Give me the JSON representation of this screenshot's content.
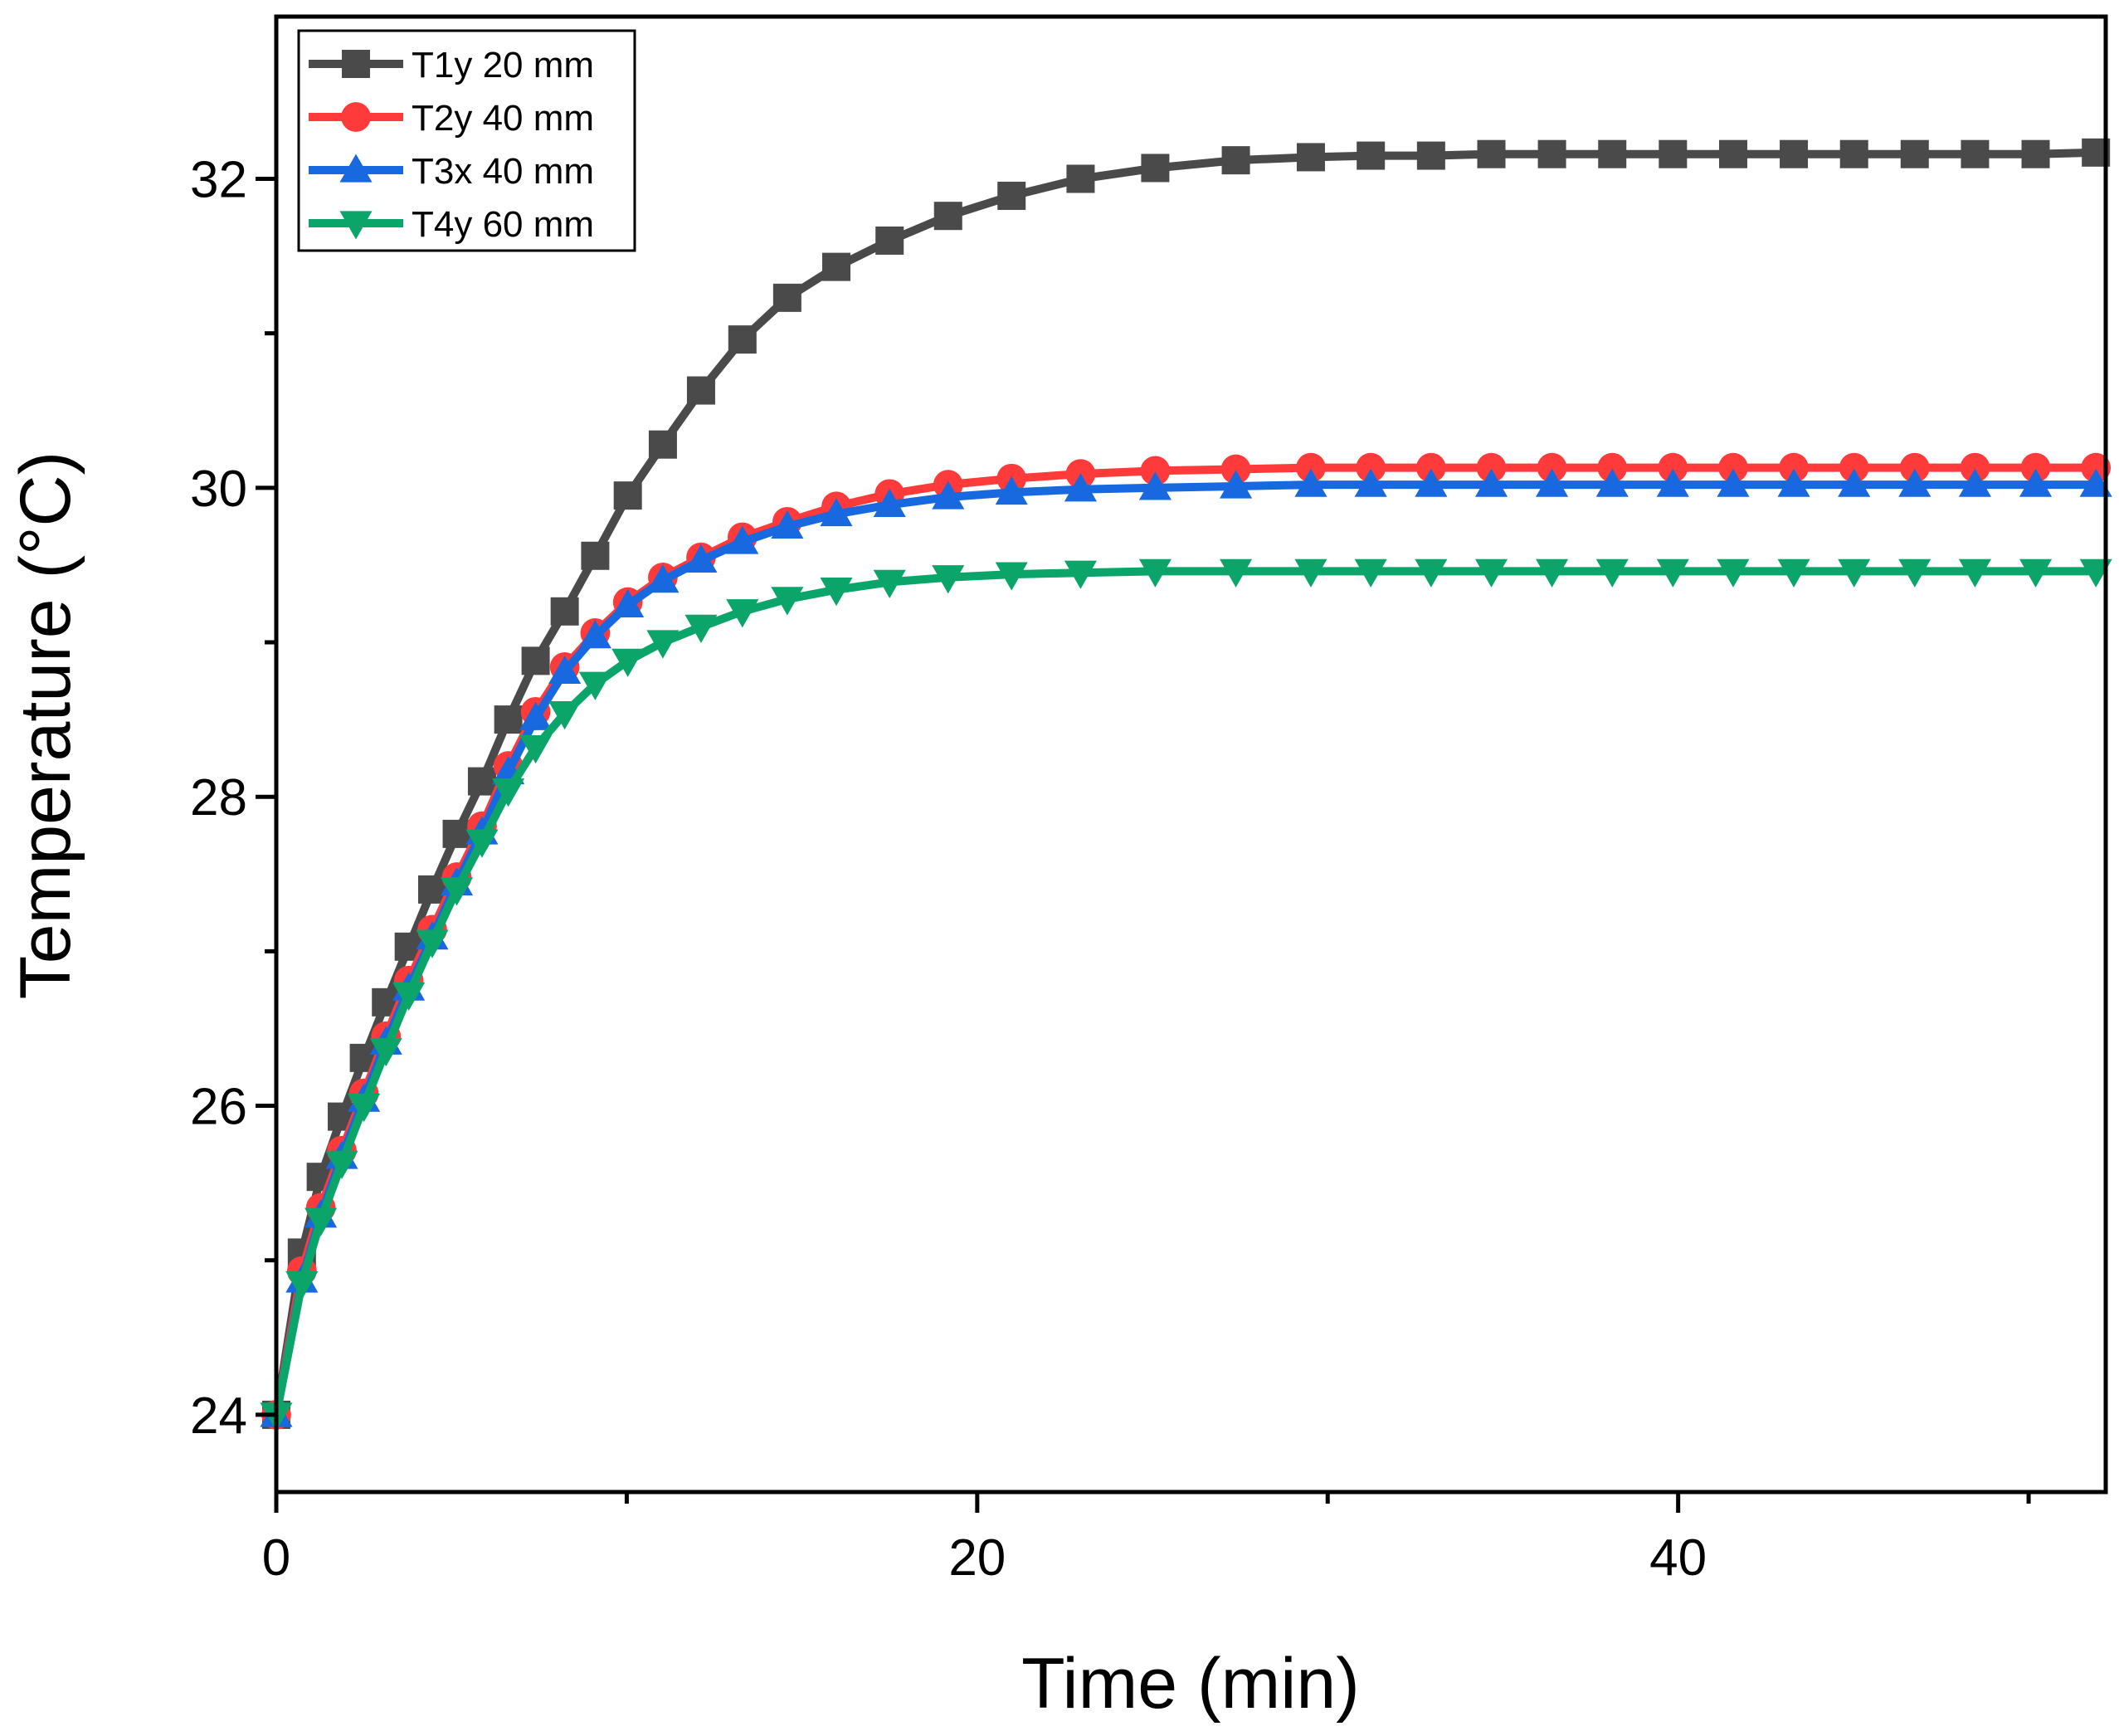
{
  "chart_data": {
    "type": "line",
    "title": "",
    "xlabel": "Time (min)",
    "ylabel": "Temperature (°C)",
    "xlim": [
      0,
      52.2
    ],
    "ylim": [
      23.5,
      33.05
    ],
    "xticks": [
      0,
      20,
      40
    ],
    "yticks": [
      24,
      26,
      28,
      30,
      32
    ],
    "legend_position": "top-left",
    "grid": false,
    "series": [
      {
        "name": "T1y 20 mm",
        "color": "#4a4a4a",
        "marker": "square",
        "x": [
          0,
          0.73,
          1.27,
          1.87,
          2.5,
          3.13,
          3.78,
          4.45,
          5.15,
          5.87,
          6.62,
          7.4,
          8.23,
          9.1,
          10.03,
          11.03,
          12.12,
          13.3,
          14.58,
          15.98,
          17.5,
          19.17,
          20.98,
          22.95,
          25.08,
          27.38,
          29.52,
          31.23,
          32.95,
          34.67,
          36.4,
          38.12,
          39.85,
          41.57,
          43.3,
          45.02,
          46.75,
          48.47,
          50.2,
          51.92
        ],
        "values": [
          24.0,
          25.05,
          25.54,
          25.93,
          26.31,
          26.67,
          27.03,
          27.4,
          27.76,
          28.1,
          28.5,
          28.88,
          29.2,
          29.56,
          29.95,
          30.28,
          30.63,
          30.96,
          31.23,
          31.43,
          31.6,
          31.76,
          31.89,
          32.0,
          32.07,
          32.12,
          32.14,
          32.15,
          32.15,
          32.16,
          32.16,
          32.16,
          32.16,
          32.16,
          32.16,
          32.16,
          32.16,
          32.16,
          32.16,
          32.17
        ]
      },
      {
        "name": "T2y 40 mm",
        "color": "#ff3a3a",
        "marker": "circle",
        "x": [
          0,
          0.73,
          1.27,
          1.87,
          2.5,
          3.13,
          3.78,
          4.45,
          5.15,
          5.87,
          6.62,
          7.4,
          8.23,
          9.1,
          10.03,
          11.03,
          12.12,
          13.3,
          14.58,
          15.98,
          17.5,
          19.17,
          20.98,
          22.95,
          25.08,
          27.38,
          29.52,
          31.23,
          32.95,
          34.67,
          36.4,
          38.12,
          39.85,
          41.57,
          43.3,
          45.02,
          46.75,
          48.47,
          50.2,
          51.92
        ],
        "values": [
          24.0,
          24.93,
          25.34,
          25.71,
          26.08,
          26.45,
          26.81,
          27.14,
          27.48,
          27.81,
          28.2,
          28.55,
          28.84,
          29.06,
          29.26,
          29.42,
          29.55,
          29.68,
          29.78,
          29.88,
          29.96,
          30.02,
          30.06,
          30.09,
          30.11,
          30.12,
          30.13,
          30.13,
          30.13,
          30.13,
          30.13,
          30.13,
          30.13,
          30.13,
          30.13,
          30.13,
          30.13,
          30.13,
          30.13,
          30.13
        ]
      },
      {
        "name": "T3x 40 mm",
        "color": "#1868e0",
        "marker": "triangle-up",
        "x": [
          0,
          0.73,
          1.27,
          1.87,
          2.5,
          3.13,
          3.78,
          4.45,
          5.15,
          5.87,
          6.62,
          7.4,
          8.23,
          9.1,
          10.03,
          11.03,
          12.12,
          13.3,
          14.58,
          15.98,
          17.5,
          19.17,
          20.98,
          22.95,
          25.08,
          27.38,
          29.52,
          31.23,
          32.95,
          34.67,
          36.4,
          38.12,
          39.85,
          41.57,
          43.3,
          45.02,
          46.75,
          48.47,
          50.2,
          51.92
        ],
        "values": [
          24.0,
          24.87,
          25.29,
          25.67,
          26.04,
          26.41,
          26.76,
          27.09,
          27.44,
          27.77,
          28.16,
          28.51,
          28.81,
          29.04,
          29.24,
          29.4,
          29.53,
          29.65,
          29.75,
          29.83,
          29.89,
          29.94,
          29.97,
          29.99,
          30.0,
          30.01,
          30.02,
          30.02,
          30.02,
          30.02,
          30.02,
          30.02,
          30.02,
          30.02,
          30.02,
          30.02,
          30.02,
          30.02,
          30.02,
          30.02
        ]
      },
      {
        "name": "T4y 60 mm",
        "color": "#0ba56a",
        "marker": "triangle-down",
        "x": [
          0,
          0.73,
          1.27,
          1.87,
          2.5,
          3.13,
          3.78,
          4.45,
          5.15,
          5.87,
          6.62,
          7.4,
          8.23,
          9.1,
          10.03,
          11.03,
          12.12,
          13.3,
          14.58,
          15.98,
          17.5,
          19.17,
          20.98,
          22.95,
          25.08,
          27.38,
          29.52,
          31.23,
          32.95,
          34.67,
          36.4,
          38.12,
          39.85,
          41.57,
          43.3,
          45.02,
          46.75,
          48.47,
          50.2,
          51.92
        ],
        "values": [
          24.0,
          24.85,
          25.26,
          25.63,
          26.0,
          26.36,
          26.72,
          27.06,
          27.4,
          27.71,
          28.04,
          28.32,
          28.54,
          28.73,
          28.88,
          29.0,
          29.1,
          29.2,
          29.28,
          29.34,
          29.39,
          29.42,
          29.44,
          29.45,
          29.46,
          29.46,
          29.46,
          29.46,
          29.46,
          29.46,
          29.46,
          29.46,
          29.46,
          29.46,
          29.46,
          29.46,
          29.46,
          29.46,
          29.46,
          29.46
        ]
      }
    ]
  }
}
